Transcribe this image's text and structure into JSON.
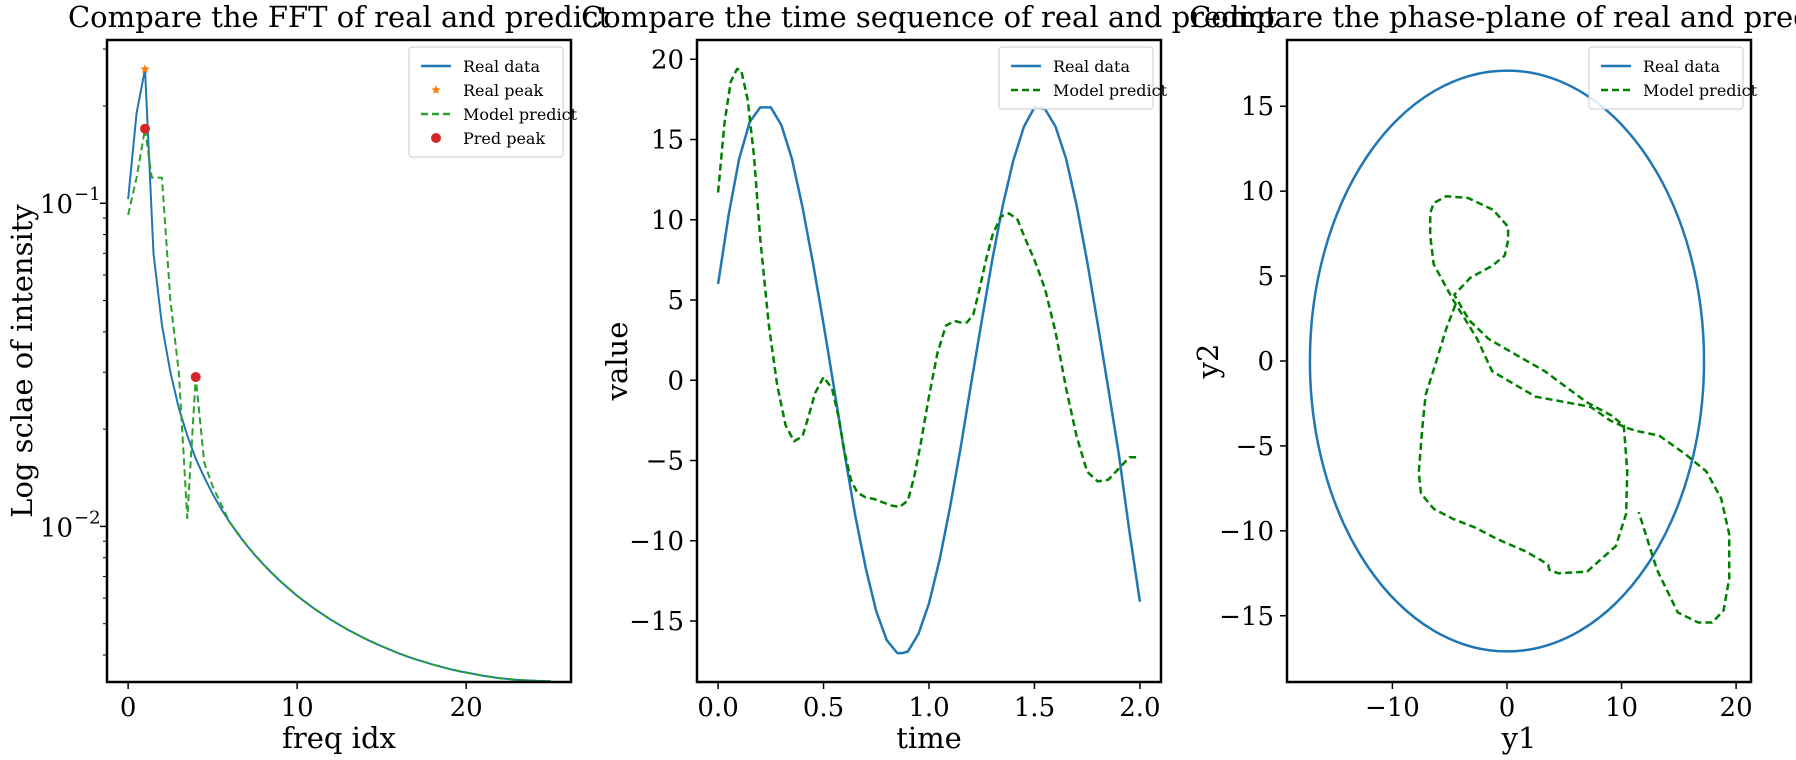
{
  "chart_data": [
    {
      "type": "line",
      "title": "Compare the FFT of real and predict",
      "xlabel": "freq idx",
      "ylabel": "Log sclae of intensity",
      "yscale": "log",
      "xlim": [
        -1.25,
        26.2
      ],
      "ylim": [
        0.0033,
        0.32
      ],
      "xticks": [
        0,
        10,
        20
      ],
      "yticks": [
        {
          "value": 0.1,
          "label": "10",
          "exp": "−1"
        },
        {
          "value": 0.01,
          "label": "10",
          "exp": "−2"
        }
      ],
      "legend": {
        "position": "top-right",
        "entries": [
          {
            "label": "Real data",
            "kind": "line",
            "color": "#1f77b4",
            "dash": ""
          },
          {
            "label": "Real peak",
            "kind": "star",
            "color": "#ff7f0e"
          },
          {
            "label": "Model predict",
            "kind": "line",
            "color": "#2ca02c",
            "dash": "7,4"
          },
          {
            "label": "Pred peak",
            "kind": "dot",
            "color": "#d62728"
          }
        ]
      },
      "series": [
        {
          "name": "Real data",
          "color": "#1f77b4",
          "dash": "",
          "width": 2,
          "x": [
            0,
            0.5,
            1,
            1.5,
            2,
            2.5,
            3,
            3.5,
            4,
            4.5,
            5,
            5.5,
            6,
            6.5,
            7,
            7.5,
            8,
            8.5,
            9,
            9.5,
            10,
            10.5,
            11,
            11.5,
            12,
            12.5,
            13,
            13.5,
            14,
            14.5,
            15,
            15.5,
            16,
            16.5,
            17,
            17.5,
            18,
            18.5,
            19,
            19.5,
            20,
            20.5,
            21,
            21.5,
            22,
            22.5,
            23,
            23.5,
            24,
            24.5,
            25
          ],
          "y": [
            0.103,
            0.19,
            0.26,
            0.07,
            0.042,
            0.03,
            0.0232,
            0.0191,
            0.0162,
            0.0142,
            0.0126,
            0.01134,
            0.01032,
            0.00947,
            0.00876,
            0.00815,
            0.00763,
            0.00717,
            0.00677,
            0.00642,
            0.0061,
            0.00582,
            0.00557,
            0.00535,
            0.00514,
            0.00496,
            0.00479,
            0.00464,
            0.0045,
            0.00437,
            0.00426,
            0.00415,
            0.00405,
            0.00396,
            0.00388,
            0.00381,
            0.00374,
            0.00368,
            0.00362,
            0.00357,
            0.00353,
            0.00349,
            0.00345,
            0.00342,
            0.00339,
            0.00337,
            0.00335,
            0.00334,
            0.00333,
            0.00332,
            0.00332
          ]
        },
        {
          "name": "Model predict",
          "color": "#2ca02c",
          "dash": "7,4",
          "width": 2,
          "x": [
            0,
            0.5,
            1,
            1.4,
            1.5,
            2,
            2.5,
            3,
            3.5,
            4,
            4.5,
            5,
            6,
            7,
            8,
            9,
            10,
            11,
            12,
            13,
            14,
            15,
            16,
            17,
            18,
            19,
            20,
            21,
            22,
            23,
            24,
            25
          ],
          "y": [
            0.092,
            0.12,
            0.17,
            0.12,
            0.12,
            0.12,
            0.05,
            0.03,
            0.0106,
            0.029,
            0.0158,
            0.0133,
            0.01032,
            0.00876,
            0.00763,
            0.00677,
            0.0061,
            0.00557,
            0.00514,
            0.00479,
            0.0045,
            0.00426,
            0.00405,
            0.00388,
            0.00374,
            0.00362,
            0.00353,
            0.00345,
            0.00339,
            0.00335,
            0.00333,
            0.00332
          ]
        },
        {
          "name": "Real peak",
          "kind": "star",
          "color": "#ff7f0e",
          "x": [
            1
          ],
          "y": [
            0.26
          ]
        },
        {
          "name": "Pred peak",
          "kind": "dot",
          "color": "#d62728",
          "x": [
            1,
            4
          ],
          "y": [
            0.17,
            0.029
          ]
        }
      ]
    },
    {
      "type": "line",
      "title": "Compare the time sequence of real and predict",
      "xlabel": "time",
      "ylabel": "value",
      "xlim": [
        -0.1,
        2.1
      ],
      "ylim": [
        -18.8,
        21.2
      ],
      "xticks": [
        0.0,
        0.5,
        1.0,
        1.5,
        2.0
      ],
      "xticklabels": [
        "0.0",
        "0.5",
        "1.0",
        "1.5",
        "2.0"
      ],
      "yticks": [
        -15,
        -10,
        -5,
        0,
        5,
        10,
        15,
        20
      ],
      "legend": {
        "position": "top-right",
        "entries": [
          {
            "label": "Real data",
            "kind": "line",
            "color": "#1f77b4",
            "dash": ""
          },
          {
            "label": "Model predict",
            "kind": "line",
            "color": "#008000",
            "dash": "7,4"
          }
        ]
      },
      "series": [
        {
          "name": "Real data",
          "color": "#1f77b4",
          "dash": "",
          "width": 2.5,
          "x": [
            0,
            0.05,
            0.1,
            0.15,
            0.2,
            0.25,
            0.3,
            0.35,
            0.4,
            0.45,
            0.5,
            0.55,
            0.6,
            0.65,
            0.7,
            0.75,
            0.8,
            0.85,
            0.875,
            0.9,
            0.95,
            1.0,
            1.05,
            1.1,
            1.15,
            1.2,
            1.25,
            1.3,
            1.35,
            1.4,
            1.45,
            1.5,
            1.55,
            1.6,
            1.65,
            1.7,
            1.75,
            1.8,
            1.85,
            1.9,
            1.95,
            2.0
          ],
          "y": [
            6,
            10.3,
            13.8,
            16.1,
            17.0,
            17.0,
            15.9,
            13.8,
            10.8,
            7.3,
            3.5,
            -0.5,
            -4.6,
            -8.4,
            -11.7,
            -14.4,
            -16.2,
            -17.0,
            -17.0,
            -16.9,
            -15.8,
            -13.9,
            -11.2,
            -7.9,
            -4.2,
            -0.2,
            3.7,
            7.5,
            10.9,
            13.7,
            15.8,
            17.0,
            16.9,
            15.8,
            13.8,
            10.9,
            7.4,
            3.5,
            -0.5,
            -4.6,
            -9.4,
            -13.8
          ]
        },
        {
          "name": "Model predict",
          "color": "#008000",
          "dash": "7,4",
          "width": 2.5,
          "x": [
            0,
            0.03,
            0.06,
            0.09,
            0.11,
            0.14,
            0.17,
            0.2,
            0.24,
            0.28,
            0.32,
            0.36,
            0.4,
            0.43,
            0.46,
            0.5,
            0.54,
            0.57,
            0.6,
            0.63,
            0.66,
            0.7,
            0.74,
            0.78,
            0.82,
            0.86,
            0.9,
            0.93,
            0.96,
            1.0,
            1.04,
            1.08,
            1.12,
            1.15,
            1.18,
            1.21,
            1.24,
            1.27,
            1.3,
            1.34,
            1.38,
            1.42,
            1.46,
            1.5,
            1.55,
            1.6,
            1.65,
            1.7,
            1.75,
            1.8,
            1.85,
            1.9,
            1.95,
            2.0
          ],
          "y": [
            11.7,
            16,
            18.6,
            19.4,
            19.3,
            17.5,
            14,
            8.8,
            3.5,
            -0.3,
            -2.8,
            -3.8,
            -3.5,
            -2.2,
            -0.8,
            0.2,
            -0.5,
            -2.2,
            -4.5,
            -6.2,
            -7,
            -7.3,
            -7.4,
            -7.6,
            -7.8,
            -7.9,
            -7.5,
            -6,
            -4,
            -1,
            1.7,
            3.4,
            3.7,
            3.6,
            3.6,
            4.1,
            5.7,
            7.5,
            9,
            10.2,
            10.4,
            10,
            8.7,
            7.5,
            5.7,
            3,
            -0.5,
            -3.5,
            -5.7,
            -6.3,
            -6.2,
            -5.5,
            -4.8,
            -4.8
          ]
        }
      ]
    },
    {
      "type": "line",
      "title": "Compare the phase-plane of real and predict",
      "xlabel": "y1",
      "ylabel": "y2",
      "xlim": [
        -19.2,
        21.3
      ],
      "ylim": [
        -18.9,
        18.9
      ],
      "xticks": [
        -10,
        0,
        10,
        20
      ],
      "yticks": [
        -15,
        -10,
        -5,
        0,
        5,
        10,
        15
      ],
      "legend": {
        "position": "top-right",
        "entries": [
          {
            "label": "Real data",
            "kind": "line",
            "color": "#1f77b4",
            "dash": ""
          },
          {
            "label": "Model predict",
            "kind": "line",
            "color": "#008000",
            "dash": "7,4"
          }
        ]
      },
      "series": [
        {
          "name": "Real data",
          "kind": "ellipse",
          "color": "#1f77b4",
          "width": 2.5,
          "cx": 0,
          "cy": 0,
          "rx": 17.2,
          "ry": 17.1
        },
        {
          "name": "Model predict",
          "color": "#008000",
          "dash": "7,4",
          "width": 2.5,
          "x": [
            -4.5,
            -5.3,
            -6.3,
            -7.1,
            -7.4,
            -7.7,
            -7.5,
            -6.4,
            -4.7,
            -2.8,
            -0.8,
            1.6,
            2.9,
            3.6,
            3.7,
            4.5,
            7,
            9.5,
            10.4,
            10.5,
            10.2,
            9.1,
            7.7,
            6.9,
            5.3,
            3.3,
            0.7,
            -1.6,
            -3.3,
            -4.6,
            -3.2,
            -1.3,
            -0.2,
            0.1,
            0.1,
            -1.2,
            -3.4,
            -5.3,
            -6.4,
            -6.7,
            -6.7,
            -6.4,
            -4.7,
            -2.6,
            -1.3,
            2.5,
            7.3,
            9,
            10.3,
            11.2,
            13.3,
            15.6,
            17.4,
            18.7,
            19.4,
            19.4,
            18.9,
            17.9,
            16.7,
            14.9,
            13.1,
            11.5
          ],
          "y": [
            3.3,
            1.9,
            -0.3,
            -2,
            -4,
            -6.6,
            -7.8,
            -8.7,
            -9.3,
            -9.8,
            -10.5,
            -11.2,
            -11.7,
            -12,
            -12.3,
            -12.5,
            -12.4,
            -10.9,
            -9,
            -6.5,
            -3.8,
            -3.2,
            -2.7,
            -2.4,
            -1.6,
            -0.6,
            0.4,
            1.3,
            2.4,
            3.9,
            4.9,
            5.6,
            6.2,
            7.1,
            7.9,
            8.9,
            9.6,
            9.7,
            9.3,
            8.7,
            7.4,
            5.7,
            3.6,
            1.3,
            -0.6,
            -2.1,
            -2.7,
            -3.5,
            -3.9,
            -4.1,
            -4.4,
            -5.5,
            -6.5,
            -8.1,
            -10.2,
            -12.8,
            -14.7,
            -15.4,
            -15.4,
            -14.8,
            -12.3,
            -8.9
          ]
        }
      ]
    }
  ]
}
